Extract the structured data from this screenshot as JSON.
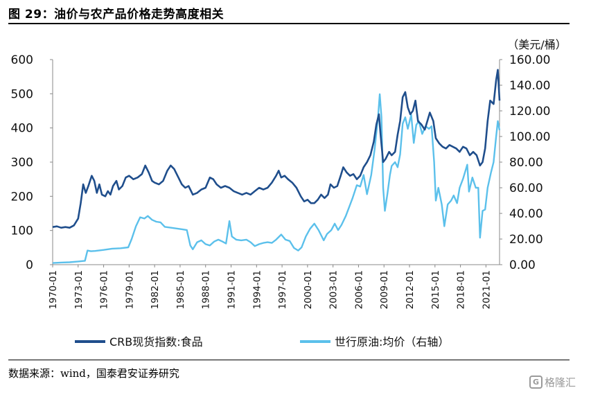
{
  "figure": {
    "title": "图 29：油价与农产品价格走势高度相关",
    "source": "数据来源：wind，国泰君安证券研究",
    "watermark": "格隆汇"
  },
  "chart_data": {
    "type": "line",
    "title": "",
    "right_axis_unit": "（美元/桶）",
    "y_left": {
      "min": 0,
      "max": 600,
      "ticks": [
        "0",
        "100",
        "200",
        "300",
        "400",
        "500",
        "600"
      ]
    },
    "y_right": {
      "min": 0,
      "max": 160,
      "ticks": [
        "0.00",
        "20.00",
        "40.00",
        "60.00",
        "80.00",
        "100.00",
        "120.00",
        "140.00",
        "160.00"
      ]
    },
    "x_range": [
      1970.0,
      2022.6
    ],
    "x_ticks": [
      "1970-01",
      "1973-01",
      "1976-01",
      "1979-01",
      "1982-01",
      "1985-01",
      "1988-01",
      "1991-01",
      "1994-01",
      "1997-01",
      "2000-01",
      "2003-01",
      "2006-01",
      "2009-01",
      "2012-01",
      "2015-01",
      "2018-01",
      "2021-01"
    ],
    "legend_position": "bottom",
    "series": [
      {
        "name": "CRB现货指数:食品",
        "axis": "left",
        "color": "#1f4e8c",
        "points": [
          [
            1970.0,
            110
          ],
          [
            1970.5,
            112
          ],
          [
            1971.0,
            108
          ],
          [
            1971.5,
            110
          ],
          [
            1972.0,
            108
          ],
          [
            1972.5,
            115
          ],
          [
            1973.0,
            135
          ],
          [
            1973.3,
            180
          ],
          [
            1973.6,
            235
          ],
          [
            1973.9,
            210
          ],
          [
            1974.2,
            230
          ],
          [
            1974.6,
            260
          ],
          [
            1974.9,
            245
          ],
          [
            1975.2,
            210
          ],
          [
            1975.5,
            235
          ],
          [
            1975.8,
            205
          ],
          [
            1976.2,
            200
          ],
          [
            1976.5,
            215
          ],
          [
            1976.8,
            205
          ],
          [
            1977.1,
            230
          ],
          [
            1977.5,
            245
          ],
          [
            1977.8,
            220
          ],
          [
            1978.2,
            230
          ],
          [
            1978.6,
            255
          ],
          [
            1979.0,
            260
          ],
          [
            1979.5,
            250
          ],
          [
            1980.0,
            255
          ],
          [
            1980.5,
            265
          ],
          [
            1980.9,
            290
          ],
          [
            1981.3,
            270
          ],
          [
            1981.7,
            245
          ],
          [
            1982.0,
            240
          ],
          [
            1982.5,
            235
          ],
          [
            1983.0,
            245
          ],
          [
            1983.5,
            275
          ],
          [
            1983.9,
            290
          ],
          [
            1984.3,
            280
          ],
          [
            1984.8,
            255
          ],
          [
            1985.2,
            235
          ],
          [
            1985.6,
            225
          ],
          [
            1986.0,
            230
          ],
          [
            1986.5,
            205
          ],
          [
            1987.0,
            210
          ],
          [
            1987.5,
            220
          ],
          [
            1988.0,
            225
          ],
          [
            1988.5,
            255
          ],
          [
            1988.9,
            250
          ],
          [
            1989.3,
            235
          ],
          [
            1989.8,
            225
          ],
          [
            1990.3,
            230
          ],
          [
            1990.8,
            225
          ],
          [
            1991.3,
            215
          ],
          [
            1991.8,
            210
          ],
          [
            1992.3,
            205
          ],
          [
            1992.8,
            210
          ],
          [
            1993.3,
            205
          ],
          [
            1993.8,
            215
          ],
          [
            1994.3,
            225
          ],
          [
            1994.8,
            220
          ],
          [
            1995.3,
            225
          ],
          [
            1995.8,
            240
          ],
          [
            1996.3,
            260
          ],
          [
            1996.6,
            275
          ],
          [
            1996.9,
            255
          ],
          [
            1997.3,
            260
          ],
          [
            1997.7,
            250
          ],
          [
            1998.2,
            240
          ],
          [
            1998.7,
            225
          ],
          [
            1999.2,
            200
          ],
          [
            1999.6,
            185
          ],
          [
            2000.0,
            190
          ],
          [
            2000.4,
            180
          ],
          [
            2000.8,
            180
          ],
          [
            2001.2,
            190
          ],
          [
            2001.6,
            205
          ],
          [
            2002.0,
            195
          ],
          [
            2002.4,
            205
          ],
          [
            2002.7,
            235
          ],
          [
            2003.1,
            225
          ],
          [
            2003.5,
            230
          ],
          [
            2003.9,
            260
          ],
          [
            2004.2,
            285
          ],
          [
            2004.6,
            270
          ],
          [
            2005.0,
            260
          ],
          [
            2005.4,
            265
          ],
          [
            2005.8,
            250
          ],
          [
            2006.2,
            260
          ],
          [
            2006.6,
            285
          ],
          [
            2007.0,
            300
          ],
          [
            2007.4,
            320
          ],
          [
            2007.8,
            360
          ],
          [
            2008.1,
            410
          ],
          [
            2008.4,
            440
          ],
          [
            2008.6,
            380
          ],
          [
            2008.9,
            300
          ],
          [
            2009.2,
            310
          ],
          [
            2009.6,
            330
          ],
          [
            2009.9,
            320
          ],
          [
            2010.3,
            330
          ],
          [
            2010.6,
            380
          ],
          [
            2010.9,
            420
          ],
          [
            2011.2,
            490
          ],
          [
            2011.5,
            505
          ],
          [
            2011.8,
            460
          ],
          [
            2012.1,
            440
          ],
          [
            2012.4,
            450
          ],
          [
            2012.7,
            480
          ],
          [
            2013.0,
            420
          ],
          [
            2013.4,
            410
          ],
          [
            2013.8,
            395
          ],
          [
            2014.1,
            420
          ],
          [
            2014.4,
            445
          ],
          [
            2014.8,
            420
          ],
          [
            2015.1,
            370
          ],
          [
            2015.5,
            355
          ],
          [
            2015.9,
            345
          ],
          [
            2016.3,
            340
          ],
          [
            2016.7,
            350
          ],
          [
            2017.1,
            345
          ],
          [
            2017.5,
            340
          ],
          [
            2017.9,
            330
          ],
          [
            2018.3,
            345
          ],
          [
            2018.7,
            340
          ],
          [
            2019.1,
            320
          ],
          [
            2019.5,
            330
          ],
          [
            2019.9,
            320
          ],
          [
            2020.3,
            290
          ],
          [
            2020.6,
            300
          ],
          [
            2020.9,
            340
          ],
          [
            2021.2,
            420
          ],
          [
            2021.5,
            480
          ],
          [
            2021.9,
            470
          ],
          [
            2022.2,
            540
          ],
          [
            2022.4,
            570
          ],
          [
            2022.6,
            480
          ]
        ]
      },
      {
        "name": "世行原油:均价（右轴）",
        "axis": "right",
        "color": "#5bc0eb",
        "points": [
          [
            1970.0,
            1.3
          ],
          [
            1971.0,
            1.7
          ],
          [
            1972.0,
            1.9
          ],
          [
            1973.0,
            2.5
          ],
          [
            1973.8,
            3.0
          ],
          [
            1974.1,
            11.0
          ],
          [
            1974.5,
            10.5
          ],
          [
            1975.0,
            10.7
          ],
          [
            1976.0,
            11.5
          ],
          [
            1977.0,
            12.5
          ],
          [
            1978.0,
            12.8
          ],
          [
            1978.9,
            13.5
          ],
          [
            1979.3,
            20.0
          ],
          [
            1979.8,
            30.0
          ],
          [
            1980.3,
            37.0
          ],
          [
            1980.8,
            36.0
          ],
          [
            1981.2,
            38.0
          ],
          [
            1981.7,
            35.0
          ],
          [
            1982.2,
            33.5
          ],
          [
            1982.7,
            33.0
          ],
          [
            1983.2,
            29.5
          ],
          [
            1983.8,
            29.0
          ],
          [
            1984.3,
            28.5
          ],
          [
            1984.8,
            28.0
          ],
          [
            1985.3,
            27.5
          ],
          [
            1985.8,
            27.0
          ],
          [
            1986.2,
            15.0
          ],
          [
            1986.5,
            12.0
          ],
          [
            1987.0,
            17.5
          ],
          [
            1987.5,
            19.0
          ],
          [
            1988.0,
            16.0
          ],
          [
            1988.5,
            15.0
          ],
          [
            1989.0,
            18.0
          ],
          [
            1989.5,
            19.5
          ],
          [
            1990.0,
            18.0
          ],
          [
            1990.4,
            16.5
          ],
          [
            1990.8,
            34.0
          ],
          [
            1991.1,
            22.0
          ],
          [
            1991.6,
            19.5
          ],
          [
            1992.2,
            19.0
          ],
          [
            1992.8,
            19.5
          ],
          [
            1993.3,
            17.5
          ],
          [
            1993.8,
            14.5
          ],
          [
            1994.3,
            16.0
          ],
          [
            1994.8,
            17.0
          ],
          [
            1995.3,
            17.5
          ],
          [
            1995.8,
            17.0
          ],
          [
            1996.3,
            19.5
          ],
          [
            1996.9,
            23.5
          ],
          [
            1997.4,
            19.5
          ],
          [
            1997.9,
            18.5
          ],
          [
            1998.4,
            13.0
          ],
          [
            1998.9,
            11.0
          ],
          [
            1999.3,
            13.5
          ],
          [
            1999.8,
            22.0
          ],
          [
            2000.3,
            28.0
          ],
          [
            2000.8,
            32.0
          ],
          [
            2001.3,
            27.0
          ],
          [
            2001.9,
            19.0
          ],
          [
            2002.3,
            24.0
          ],
          [
            2002.8,
            27.0
          ],
          [
            2003.2,
            32.0
          ],
          [
            2003.6,
            27.0
          ],
          [
            2004.0,
            31.0
          ],
          [
            2004.5,
            38.0
          ],
          [
            2004.9,
            45.0
          ],
          [
            2005.3,
            52.0
          ],
          [
            2005.8,
            62.0
          ],
          [
            2006.2,
            61.0
          ],
          [
            2006.6,
            70.0
          ],
          [
            2007.0,
            55.0
          ],
          [
            2007.5,
            70.0
          ],
          [
            2007.9,
            90.0
          ],
          [
            2008.3,
            115.0
          ],
          [
            2008.5,
            133.0
          ],
          [
            2008.7,
            115.0
          ],
          [
            2008.9,
            60.0
          ],
          [
            2009.1,
            42.0
          ],
          [
            2009.4,
            55.0
          ],
          [
            2009.7,
            70.0
          ],
          [
            2009.9,
            77.0
          ],
          [
            2010.3,
            80.0
          ],
          [
            2010.6,
            76.0
          ],
          [
            2010.9,
            86.0
          ],
          [
            2011.2,
            110.0
          ],
          [
            2011.5,
            115.0
          ],
          [
            2011.8,
            106.0
          ],
          [
            2012.2,
            117.0
          ],
          [
            2012.5,
            95.0
          ],
          [
            2012.8,
            109.0
          ],
          [
            2013.1,
            112.0
          ],
          [
            2013.5,
            102.0
          ],
          [
            2013.9,
            108.0
          ],
          [
            2014.3,
            106.0
          ],
          [
            2014.6,
            108.0
          ],
          [
            2014.9,
            80.0
          ],
          [
            2015.1,
            50.0
          ],
          [
            2015.4,
            60.0
          ],
          [
            2015.8,
            47.0
          ],
          [
            2016.1,
            30.0
          ],
          [
            2016.5,
            47.0
          ],
          [
            2016.9,
            50.0
          ],
          [
            2017.2,
            54.0
          ],
          [
            2017.6,
            48.0
          ],
          [
            2017.9,
            60.0
          ],
          [
            2018.3,
            67.0
          ],
          [
            2018.8,
            78.0
          ],
          [
            2019.0,
            57.0
          ],
          [
            2019.4,
            68.0
          ],
          [
            2019.8,
            60.0
          ],
          [
            2020.1,
            60.0
          ],
          [
            2020.3,
            21.0
          ],
          [
            2020.6,
            42.0
          ],
          [
            2020.9,
            43.0
          ],
          [
            2021.2,
            60.0
          ],
          [
            2021.6,
            72.0
          ],
          [
            2021.9,
            80.0
          ],
          [
            2022.2,
            100.0
          ],
          [
            2022.4,
            112.0
          ],
          [
            2022.6,
            105.0
          ]
        ]
      }
    ]
  }
}
